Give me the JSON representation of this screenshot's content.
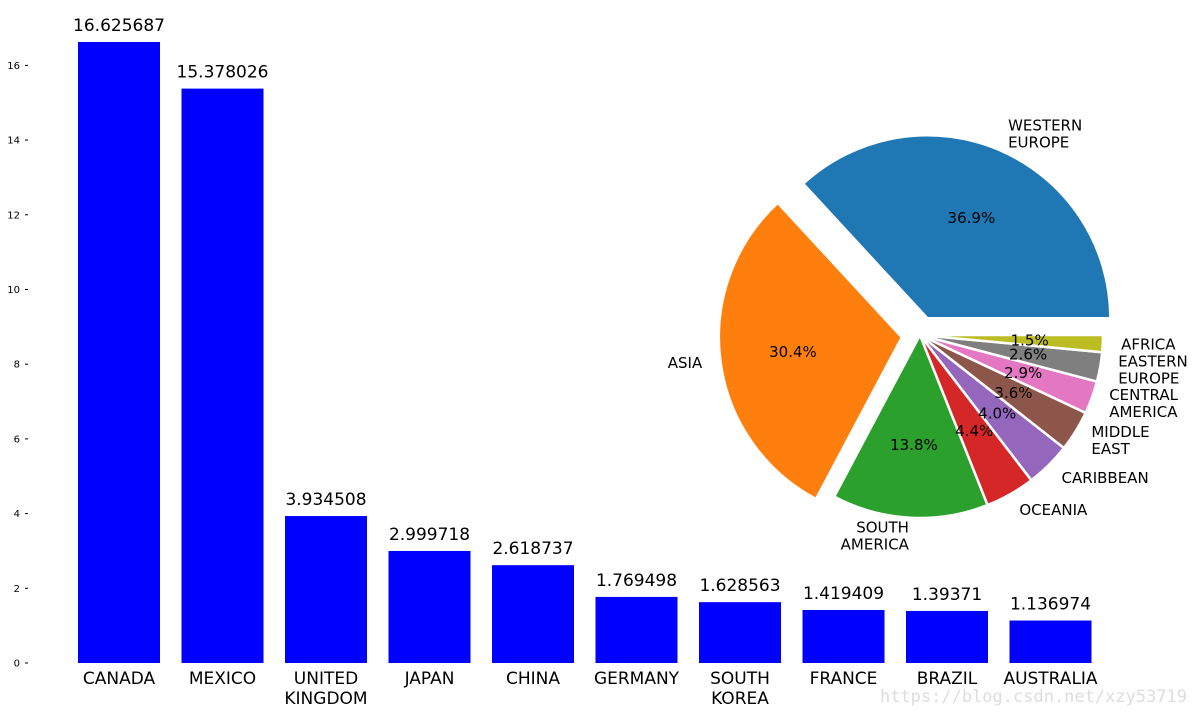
{
  "chart_data": [
    {
      "type": "bar",
      "categories": [
        "CANADA",
        "MEXICO",
        "UNITED\nKINGDOM",
        "JAPAN",
        "CHINA",
        "GERMANY",
        "SOUTH\nKOREA",
        "FRANCE",
        "BRAZIL",
        "AUSTRALIA"
      ],
      "values": [
        16.625687,
        15.378026,
        3.934508,
        2.999718,
        2.618737,
        1.769498,
        1.628563,
        1.419409,
        1.39371,
        1.136974
      ],
      "data_labels": [
        "16.625687",
        "15.378026",
        "3.934508",
        "2.999718",
        "2.618737",
        "1.769498",
        "1.628563",
        "1.419409",
        "1.39371",
        "1.136974"
      ],
      "yticks": [
        0,
        2,
        4,
        6,
        8,
        10,
        12,
        14,
        16
      ],
      "ylim": [
        0,
        16.625687
      ],
      "bar_color": "#0000ff",
      "grid": false,
      "title": "",
      "xlabel": "",
      "ylabel": ""
    },
    {
      "type": "pie",
      "labels": [
        "WESTERN\nEUROPE",
        "ASIA",
        "SOUTH\nAMERICA",
        "OCEANIA",
        "CARIBBEAN",
        "MIDDLE\nEAST",
        "CENTRAL\nAMERICA",
        "EASTERN\nEUROPE",
        "AFRICA"
      ],
      "values": [
        36.9,
        30.4,
        13.8,
        4.4,
        4.0,
        3.6,
        2.9,
        2.6,
        1.5
      ],
      "pct_labels": [
        "36.9%",
        "30.4%",
        "13.8%",
        "4.4%",
        "4.0%",
        "3.6%",
        "2.9%",
        "2.6%",
        "1.5%"
      ],
      "colors": [
        "#1f77b4",
        "#ff7f0e",
        "#2ca02c",
        "#d62728",
        "#9467bd",
        "#8c564b",
        "#e377c2",
        "#7f7f7f",
        "#bcbd22"
      ],
      "explode": [
        0.1,
        0.1,
        0,
        0,
        0,
        0,
        0,
        0,
        0
      ]
    }
  ],
  "watermark": "https://blog.csdn.net/xzy53719"
}
